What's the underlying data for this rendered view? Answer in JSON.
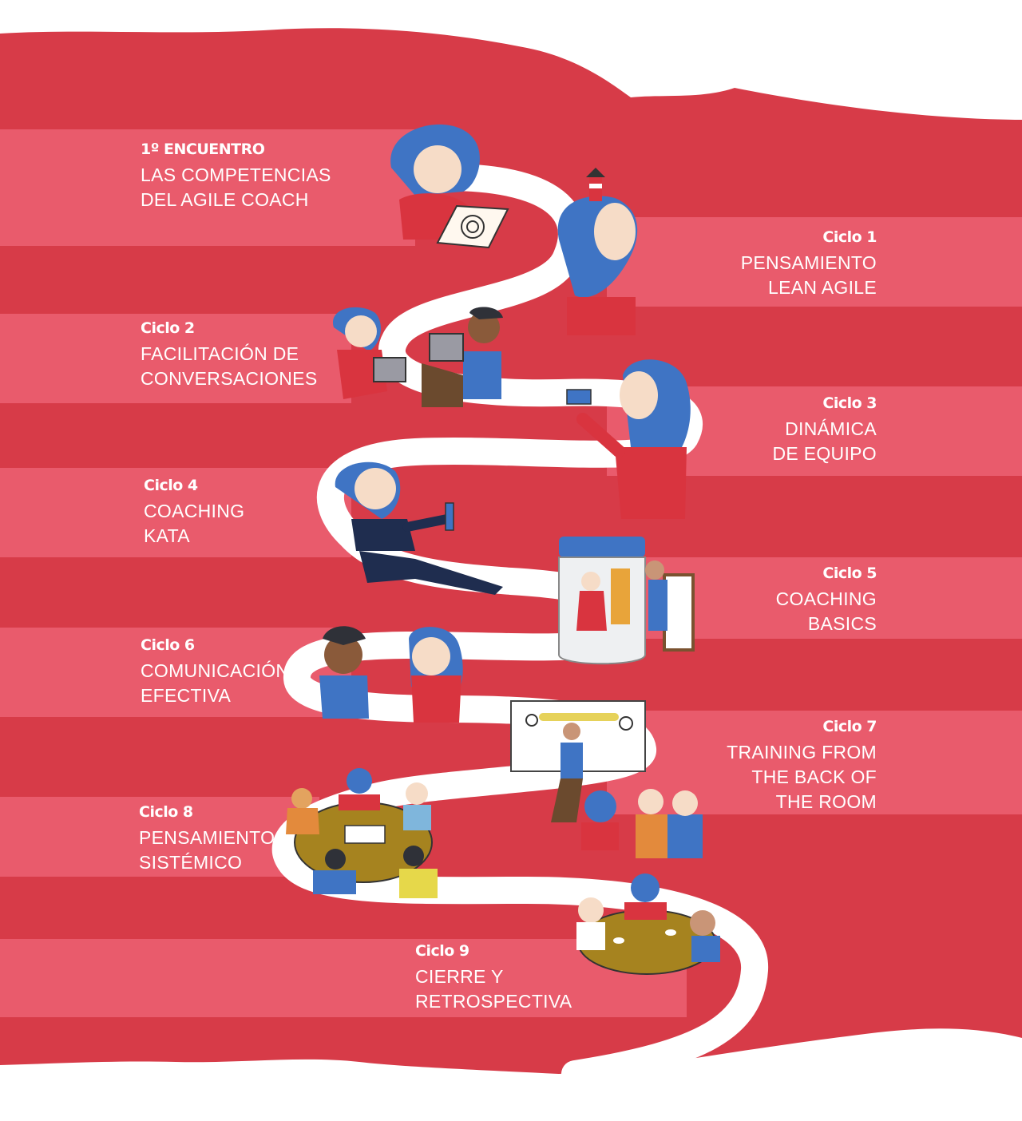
{
  "colors": {
    "background_red": "#d73b48",
    "band_light": "#e95b6c",
    "path": "#ffffff",
    "text": "#ffffff",
    "hair_blue": "#3f74c4",
    "shirt_red": "#d9343f",
    "skin": "#f6dcc7",
    "table_olive": "#a6831f"
  },
  "stages": [
    {
      "heading": "1º ENCUENTRO",
      "lines": [
        "LAS COMPETENCIAS",
        "DEL AGILE COACH"
      ],
      "icon": "target-drawing-icon"
    },
    {
      "heading": "Ciclo 1",
      "lines": [
        "PENSAMIENTO",
        "LEAN AGILE"
      ],
      "icon": "lighthouse-icon"
    },
    {
      "heading": "Ciclo 2",
      "lines": [
        "FACILITACIÓN DE",
        "CONVERSACIONES"
      ],
      "icon": "tablets-icon"
    },
    {
      "heading": "Ciclo 3",
      "lines": [
        "DINÁMICA",
        "DE EQUIPO"
      ],
      "icon": "sticky-note-icon"
    },
    {
      "heading": "Ciclo 4",
      "lines": [
        "COACHING",
        "KATA"
      ],
      "icon": "test-tube-icon"
    },
    {
      "heading": "Ciclo 5",
      "lines": [
        "COACHING",
        "BASICS"
      ],
      "icon": "jar-icon"
    },
    {
      "heading": "Ciclo 6",
      "lines": [
        "COMUNICACIÓN",
        "EFECTIVA"
      ],
      "icon": "conversation-icon"
    },
    {
      "heading": "Ciclo 7",
      "lines": [
        "TRAINING FROM",
        "THE BACK OF",
        "THE ROOM"
      ],
      "icon": "whiteboard-icon"
    },
    {
      "heading": "Ciclo 8",
      "lines": [
        "PENSAMIENTO",
        "SISTÉMICO"
      ],
      "icon": "round-table-icon"
    },
    {
      "heading": "Ciclo 9",
      "lines": [
        "CIERRE Y",
        "RETROSPECTIVA"
      ],
      "icon": "coffee-table-icon"
    }
  ]
}
